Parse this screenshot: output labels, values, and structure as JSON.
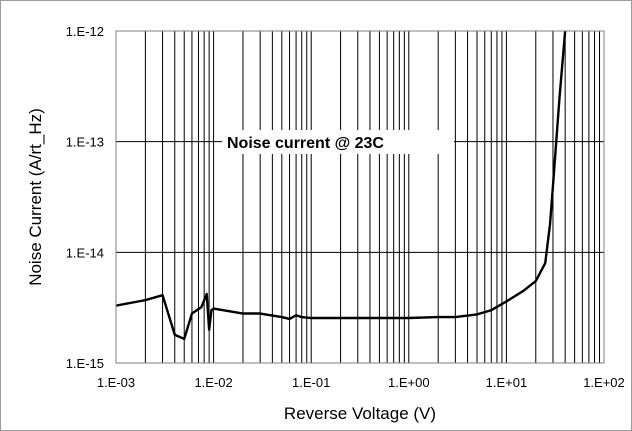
{
  "chart_data": {
    "type": "line",
    "title": "",
    "xlabel": "Reverse Voltage  (V)",
    "ylabel": "Noise Current (A/rt_Hz)",
    "x_scale": "log",
    "y_scale": "log",
    "xlim": [
      0.001,
      100
    ],
    "ylim": [
      1e-15,
      1e-12
    ],
    "x_tick_labels": [
      "1.E-03",
      "1.E-02",
      "1.E-01",
      "1.E+00",
      "1.E+01",
      "1.E+02"
    ],
    "y_tick_labels": [
      "1.E-12",
      "1.E-13",
      "1.E-14",
      "1.E-15"
    ],
    "grid": "major and minor vertical lines on log x axis, major horizontal lines",
    "legend": "none",
    "annotation": "Noise current @ 23C",
    "line_color": "#000000",
    "series": [
      {
        "x": [
          0.001,
          0.002,
          0.003,
          0.004,
          0.005,
          0.006,
          0.0075,
          0.0085,
          0.009,
          0.0095,
          0.01,
          0.02,
          0.03,
          0.05,
          0.06,
          0.07,
          0.08,
          0.1,
          0.2,
          0.3,
          0.5,
          0.7,
          1,
          2,
          3,
          5,
          7,
          10,
          15,
          20,
          25,
          28,
          30,
          35,
          40
        ],
        "y": [
          3.3e-15,
          3.7e-15,
          4.1e-15,
          1.8e-15,
          1.65e-15,
          2.8e-15,
          3.2e-15,
          4.2e-15,
          2e-15,
          3e-15,
          3.1e-15,
          2.8e-15,
          2.8e-15,
          2.6e-15,
          2.5e-15,
          2.7e-15,
          2.6e-15,
          2.55e-15,
          2.55e-15,
          2.55e-15,
          2.55e-15,
          2.55e-15,
          2.55e-15,
          2.6e-15,
          2.6e-15,
          2.75e-15,
          3e-15,
          3.6e-15,
          4.5e-15,
          5.5e-15,
          8e-15,
          1.8e-14,
          4e-14,
          2.5e-13,
          1e-12
        ]
      }
    ]
  }
}
